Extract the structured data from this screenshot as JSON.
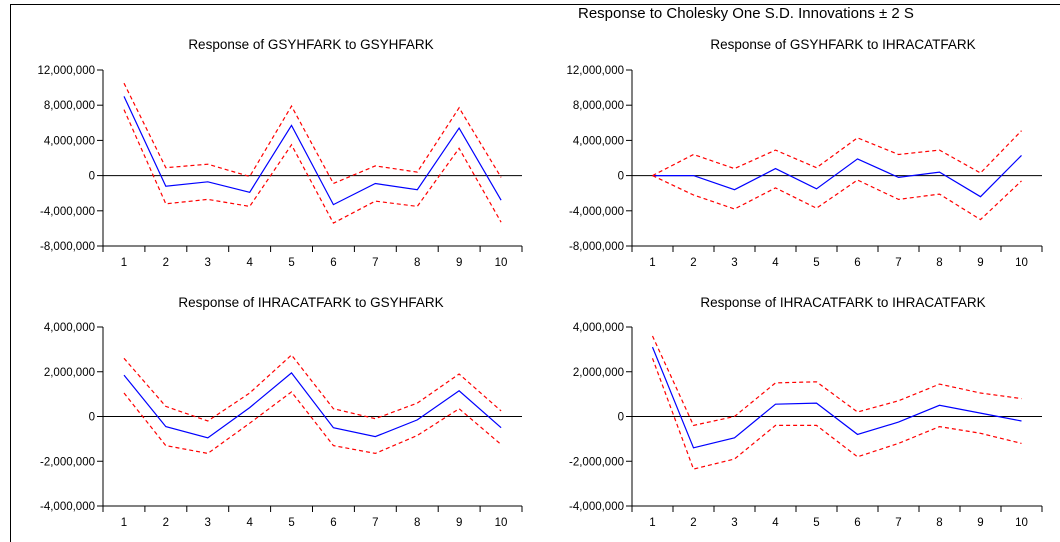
{
  "header": {
    "title": "Response to Cholesky One S.D. Innovations ± 2 S"
  },
  "colors": {
    "response": "#0000ff",
    "band": "#ff0000",
    "axis": "#000000"
  },
  "chart_data": [
    {
      "type": "line",
      "title": "Response of GSYHFARK to GSYHFARK",
      "x": [
        1,
        2,
        3,
        4,
        5,
        6,
        7,
        8,
        9,
        10
      ],
      "y_tick_labels": [
        "12,000,000",
        "8,000,000",
        "4,000,000",
        "0",
        "-4,000,000",
        "-8,000,000"
      ],
      "y_ticks": [
        12000000,
        8000000,
        4000000,
        0,
        -4000000,
        -8000000
      ],
      "ylim": [
        -8000000,
        12000000
      ],
      "series": [
        {
          "role": "response",
          "values": [
            9000000,
            -1200000,
            -700000,
            -1900000,
            5700000,
            -3300000,
            -900000,
            -1600000,
            5400000,
            -2800000
          ]
        },
        {
          "role": "upper",
          "values": [
            10500000,
            900000,
            1300000,
            -100000,
            7900000,
            -900000,
            1100000,
            400000,
            7700000,
            -200000
          ]
        },
        {
          "role": "lower",
          "values": [
            7500000,
            -3200000,
            -2700000,
            -3500000,
            3500000,
            -5400000,
            -2900000,
            -3500000,
            3100000,
            -5300000
          ]
        }
      ]
    },
    {
      "type": "line",
      "title": "Response of GSYHFARK to IHRACATFARK",
      "x": [
        1,
        2,
        3,
        4,
        5,
        6,
        7,
        8,
        9,
        10
      ],
      "y_tick_labels": [
        "12,000,000",
        "8,000,000",
        "4,000,000",
        "0",
        "-4,000,000",
        "-8,000,000"
      ],
      "y_ticks": [
        12000000,
        8000000,
        4000000,
        0,
        -4000000,
        -8000000
      ],
      "ylim": [
        -8000000,
        12000000
      ],
      "series": [
        {
          "role": "response",
          "values": [
            0,
            0,
            -1600000,
            800000,
            -1500000,
            1900000,
            -200000,
            400000,
            -2400000,
            2300000
          ]
        },
        {
          "role": "upper",
          "values": [
            0,
            2400000,
            800000,
            2900000,
            900000,
            4300000,
            2400000,
            2900000,
            300000,
            5100000
          ]
        },
        {
          "role": "lower",
          "values": [
            0,
            -2200000,
            -3800000,
            -1400000,
            -3700000,
            -500000,
            -2700000,
            -2100000,
            -5000000,
            -600000
          ]
        }
      ]
    },
    {
      "type": "line",
      "title": "Response of IHRACATFARK to GSYHFARK",
      "x": [
        1,
        2,
        3,
        4,
        5,
        6,
        7,
        8,
        9,
        10
      ],
      "y_tick_labels": [
        "4,000,000",
        "2,000,000",
        "0",
        "-2,000,000",
        "-4,000,000"
      ],
      "y_ticks": [
        4000000,
        2000000,
        0,
        -2000000,
        -4000000
      ],
      "ylim": [
        -4000000,
        4000000
      ],
      "series": [
        {
          "role": "response",
          "values": [
            1850000,
            -450000,
            -950000,
            400000,
            1950000,
            -500000,
            -900000,
            -150000,
            1150000,
            -500000
          ]
        },
        {
          "role": "upper",
          "values": [
            2600000,
            450000,
            -200000,
            1050000,
            2750000,
            350000,
            -100000,
            600000,
            1900000,
            250000
          ]
        },
        {
          "role": "lower",
          "values": [
            1050000,
            -1300000,
            -1650000,
            -300000,
            1100000,
            -1300000,
            -1650000,
            -850000,
            350000,
            -1250000
          ]
        }
      ]
    },
    {
      "type": "line",
      "title": "Response of IHRACATFARK to IHRACATFARK",
      "x": [
        1,
        2,
        3,
        4,
        5,
        6,
        7,
        8,
        9,
        10
      ],
      "y_tick_labels": [
        "4,000,000",
        "2,000,000",
        "0",
        "-2,000,000",
        "-4,000,000"
      ],
      "y_ticks": [
        4000000,
        2000000,
        0,
        -2000000,
        -4000000
      ],
      "ylim": [
        -4000000,
        4000000
      ],
      "series": [
        {
          "role": "response",
          "values": [
            3100000,
            -1400000,
            -950000,
            550000,
            600000,
            -800000,
            -250000,
            500000,
            150000,
            -200000
          ]
        },
        {
          "role": "upper",
          "values": [
            3600000,
            -400000,
            0,
            1500000,
            1550000,
            200000,
            700000,
            1450000,
            1050000,
            800000
          ]
        },
        {
          "role": "lower",
          "values": [
            2600000,
            -2350000,
            -1900000,
            -400000,
            -400000,
            -1800000,
            -1200000,
            -450000,
            -750000,
            -1200000
          ]
        }
      ]
    }
  ]
}
